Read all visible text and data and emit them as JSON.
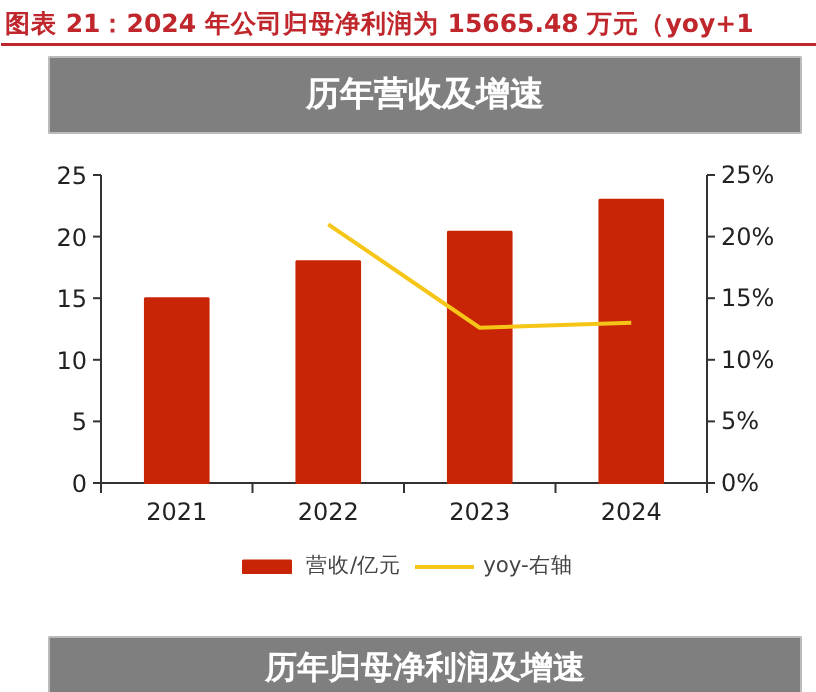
{
  "chart_data": {
    "type": "bar",
    "title": "图表 21：2024 年公司归母净利润为 15665.48 万元（yoy+1",
    "subtitle": "历年营收及增速",
    "annotations": [
      "历年归母净利润及增速"
    ],
    "categories": [
      "2021",
      "2022",
      "2023",
      "2024"
    ],
    "series": [
      {
        "name": "营收/亿元",
        "color": "#c82506",
        "values": [
          15,
          18,
          20.4,
          23
        ]
      },
      {
        "name": "yoy-右轴",
        "type": "line",
        "axis": "y2",
        "color": "#f5c518",
        "values": [
          null,
          0.21,
          0.126,
          0.13
        ]
      }
    ],
    "ylim": [
      0,
      25
    ],
    "yticks": [
      0,
      5,
      10,
      15,
      20,
      25
    ],
    "y2lim": [
      0,
      0.25
    ],
    "y2ticks": [
      {
        "value": 0,
        "label": "0%"
      },
      {
        "value": 0.05,
        "label": "5%"
      },
      {
        "value": 0.1,
        "label": "10%"
      },
      {
        "value": 0.15,
        "label": "15%"
      },
      {
        "value": 0.2,
        "label": "20%"
      },
      {
        "value": 0.25,
        "label": "25%"
      }
    ],
    "legend": "bottom"
  }
}
